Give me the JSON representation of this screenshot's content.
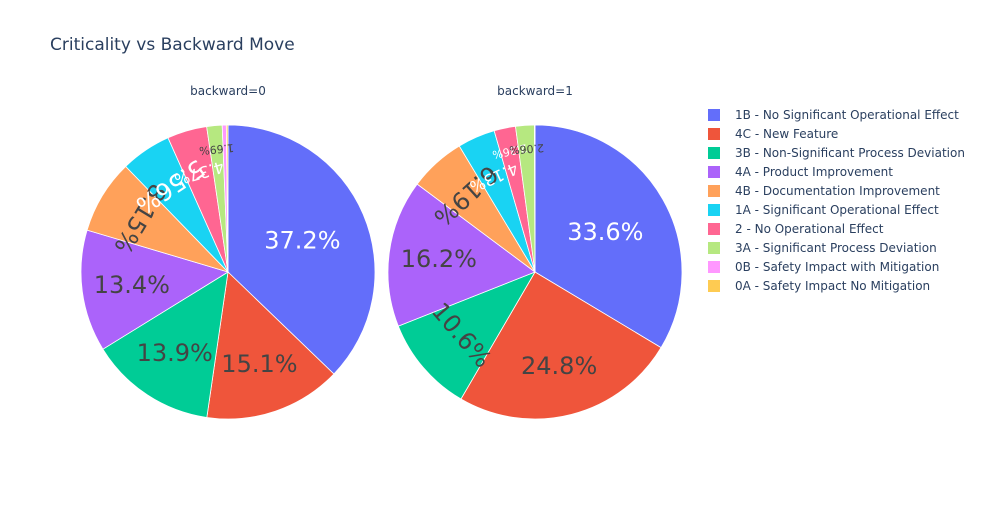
{
  "chart_data": {
    "type": "pie",
    "title": "Criticality vs Backward Move",
    "categories": [
      "1B - No Significant Operational Effect",
      "4C - New Feature",
      "3B - Non-Significant Process Deviation",
      "4A - Product Improvement",
      "4B - Documentation Improvement",
      "1A - Significant Operational Effect",
      "2 - No Operational Effect",
      "3A - Significant Process Deviation",
      "0B - Safety Impact with Mitigation",
      "0A - Safety Impact No Mitigation"
    ],
    "colors": [
      "#636efa",
      "#EF553B",
      "#00cc96",
      "#ab63fa",
      "#FFA15A",
      "#19d3f3",
      "#FF6692",
      "#B6E880",
      "#FF97FF",
      "#FECB52"
    ],
    "legend_position": "right",
    "series": [
      {
        "name": "backward=0",
        "values": [
          37.2,
          15.1,
          13.9,
          13.4,
          8.15,
          5.56,
          4.37,
          1.69,
          0.45,
          0.18
        ],
        "labels": [
          "37.2%",
          "15.1%",
          "13.9%",
          "13.4%",
          "8.15%",
          "5.56%",
          "4.37%",
          "1.69%",
          "",
          ""
        ]
      },
      {
        "name": "backward=1",
        "values": [
          33.6,
          24.8,
          10.6,
          16.2,
          6.19,
          4.13,
          2.36,
          2.06,
          0.03,
          0.03
        ],
        "labels": [
          "33.6%",
          "24.8%",
          "10.6%",
          "16.2%",
          "6.19%",
          "4.13%",
          "2.36%",
          "2.06%",
          "",
          ""
        ]
      }
    ]
  }
}
